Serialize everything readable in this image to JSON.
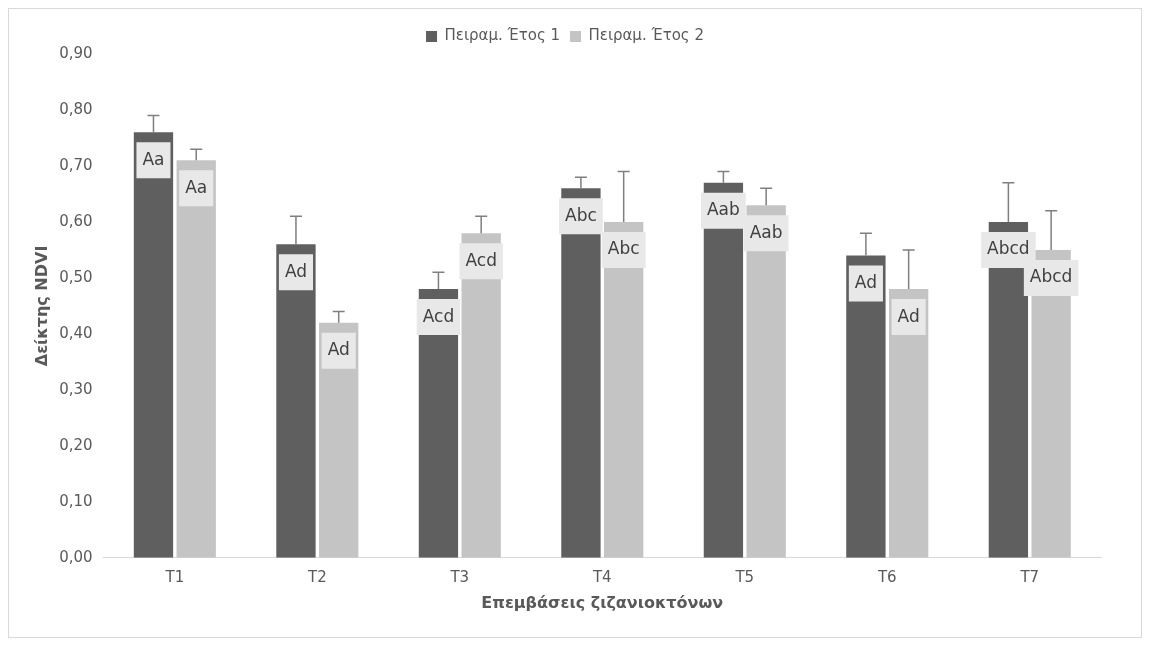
{
  "chart_data": {
    "type": "bar",
    "xlabel": "Επεμβάσεις ζιζανιοκτόνων",
    "ylabel": "Δείκτης NDVI",
    "categories": [
      "T1",
      "T2",
      "T3",
      "T4",
      "T5",
      "T6",
      "T7"
    ],
    "series": [
      {
        "name": "Πειραμ. Έτος 1",
        "color": "#5f5f5f",
        "values": [
          0.76,
          0.56,
          0.48,
          0.66,
          0.67,
          0.54,
          0.6
        ],
        "errors": [
          [
            0.76,
            0.79
          ],
          [
            0.56,
            0.61
          ],
          [
            0.48,
            0.51
          ],
          [
            0.66,
            0.68
          ],
          [
            0.67,
            0.69
          ],
          [
            0.54,
            0.58
          ],
          [
            0.6,
            0.67
          ]
        ],
        "value_labels": [
          "Aa",
          "Ad",
          "Acd",
          "Abc",
          "Aab",
          "Ad",
          "Abcd"
        ]
      },
      {
        "name": "Πειραμ. Έτος 2",
        "color": "#c4c4c4",
        "values": [
          0.71,
          0.42,
          0.58,
          0.6,
          0.63,
          0.48,
          0.55
        ],
        "errors": [
          [
            0.71,
            0.73
          ],
          [
            0.42,
            0.44
          ],
          [
            0.58,
            0.61
          ],
          [
            0.6,
            0.69
          ],
          [
            0.63,
            0.66
          ],
          [
            0.48,
            0.55
          ],
          [
            0.55,
            0.62
          ]
        ],
        "value_labels": [
          "Aa",
          "Ad",
          "Acd",
          "Abc",
          "Aab",
          "Ad",
          "Abcd"
        ]
      }
    ],
    "ylim": [
      0,
      0.9
    ],
    "yticks": [
      {
        "value": 0,
        "label": "0,00"
      },
      {
        "value": 0.1,
        "label": "0,10"
      },
      {
        "value": 0.2,
        "label": "0,20"
      },
      {
        "value": 0.3,
        "label": "0,30"
      },
      {
        "value": 0.4,
        "label": "0,40"
      },
      {
        "value": 0.5,
        "label": "0,50"
      },
      {
        "value": 0.6,
        "label": "0,60"
      },
      {
        "value": 0.7,
        "label": "0,70"
      },
      {
        "value": 0.8,
        "label": "0,80"
      },
      {
        "value": 0.9,
        "label": "0,90"
      }
    ],
    "grid": false,
    "legend": "top"
  }
}
